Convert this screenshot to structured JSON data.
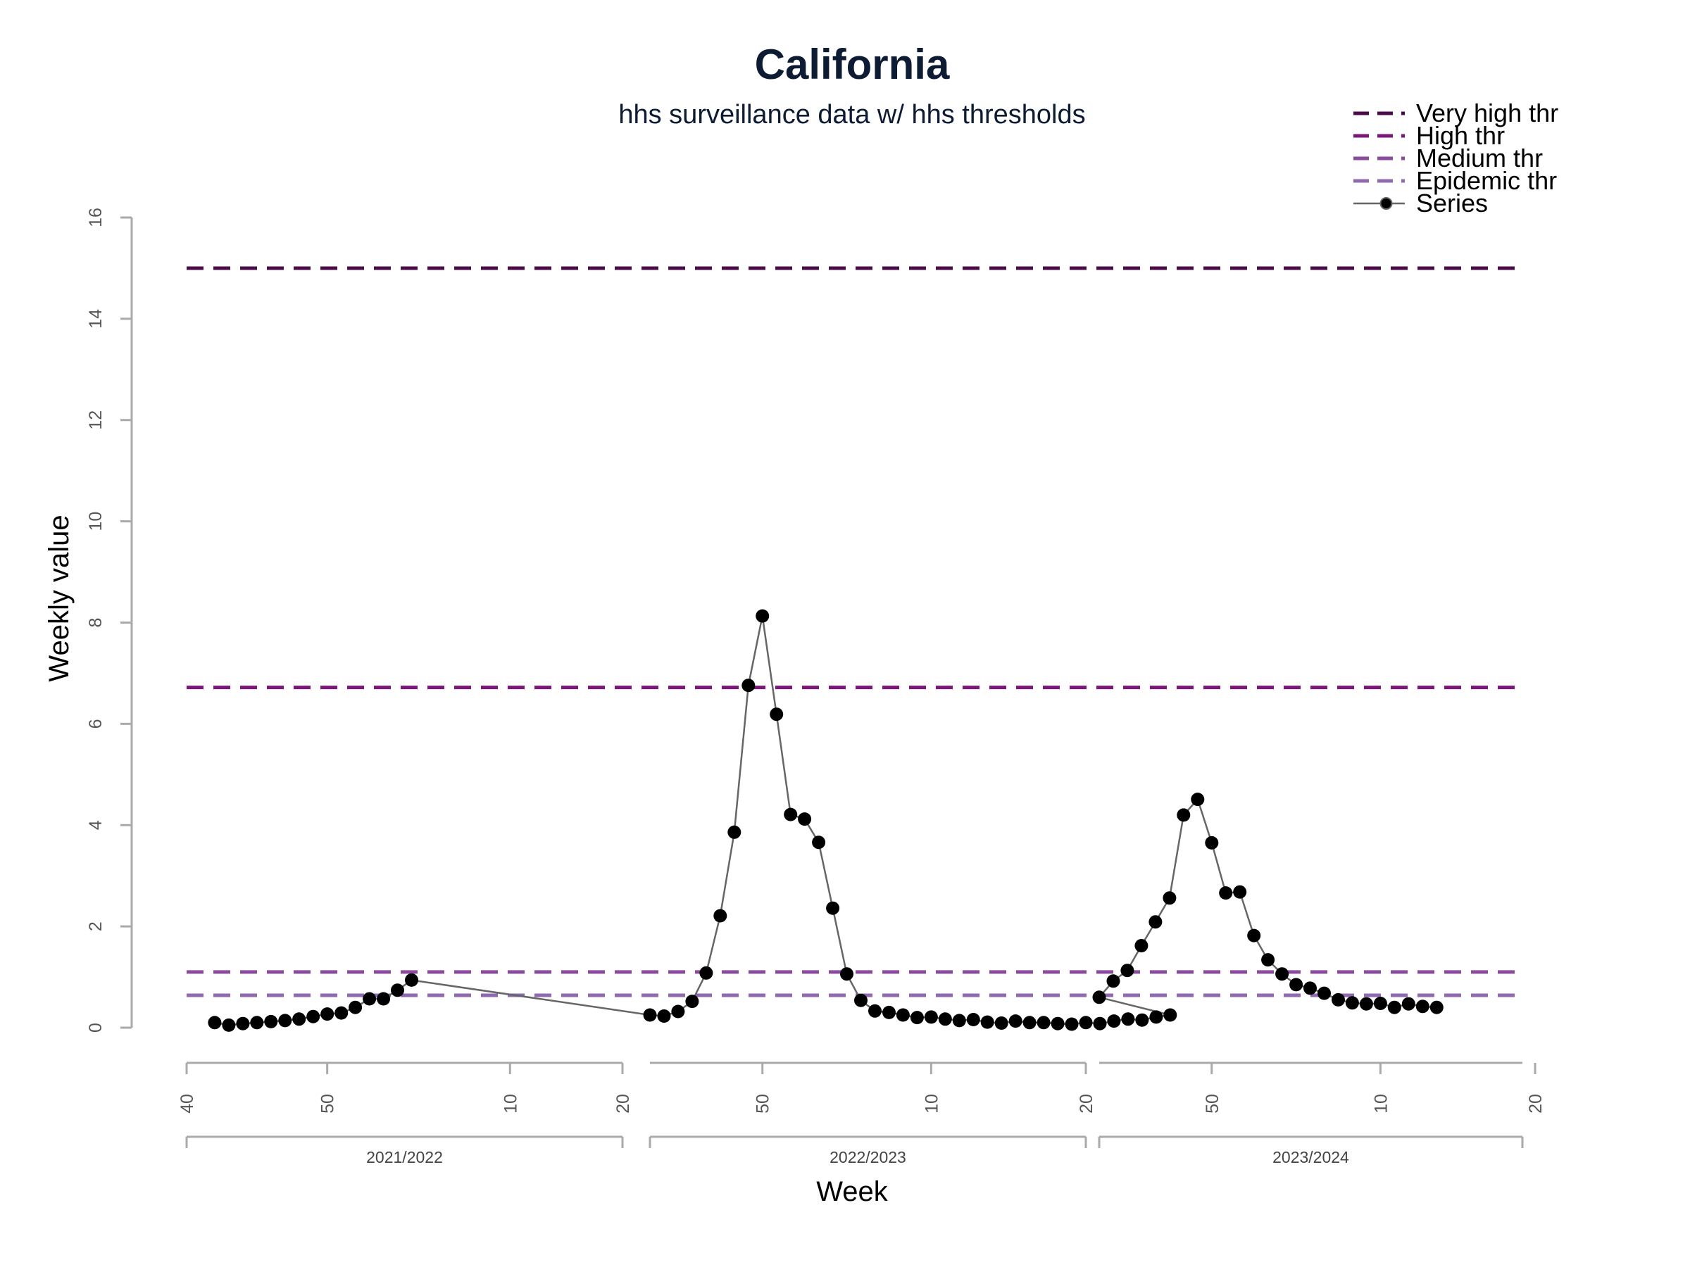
{
  "chart_data": {
    "type": "line",
    "title": "California",
    "subtitle": "hhs surveillance data w/ hhs thresholds",
    "xlabel": "Week",
    "ylabel": "Weekly value",
    "ylim": [
      0,
      16
    ],
    "yticks": [
      0,
      2,
      4,
      6,
      8,
      10,
      12,
      14,
      16
    ],
    "grid": false,
    "legend_position": "top-right",
    "x_axis": {
      "seasons": [
        {
          "label": "2021/2022",
          "start_week": 40,
          "end_week": 20,
          "tick_labels": [
            "40",
            "50",
            "10",
            "20"
          ]
        },
        {
          "label": "2022/2023",
          "start_week": 21,
          "end_week": 20,
          "tick_labels": [
            "50",
            "10",
            "20"
          ]
        },
        {
          "label": "2023/2024",
          "start_week": 21,
          "end_week": 20,
          "tick_labels": [
            "50",
            "10",
            "20"
          ]
        }
      ]
    },
    "thresholds": [
      {
        "name": "Very high thr",
        "value": 15.0,
        "color": "#4b0b4b"
      },
      {
        "name": "High thr",
        "value": 6.72,
        "color": "#7a1779"
      },
      {
        "name": "Medium thr",
        "value": 1.1,
        "color": "#8a4a9e"
      },
      {
        "name": "Epidemic thr",
        "value": 0.64,
        "color": "#8f69b0"
      }
    ],
    "series": [
      {
        "name": "Series",
        "color": "#000000",
        "line_color": "#666666",
        "start": {
          "season": 0,
          "week": 2
        },
        "values": [
          0.1,
          0.05,
          0.08,
          0.1,
          0.12,
          0.14,
          0.17,
          0.22,
          0.27,
          0.29,
          0.4,
          0.57,
          0.57,
          0.74,
          0.94,
          0.25,
          0.23,
          0.32,
          0.52,
          1.08,
          2.21,
          3.86,
          6.76,
          8.13,
          6.19,
          4.21,
          4.12,
          3.66,
          2.36,
          1.06,
          0.54,
          0.33,
          0.3,
          0.25,
          0.2,
          0.21,
          0.17,
          0.14,
          0.16,
          0.11,
          0.09,
          0.13,
          0.1,
          0.1,
          0.08,
          0.07,
          0.1,
          0.08,
          0.13,
          0.17,
          0.15,
          0.21,
          0.25,
          0.6,
          0.92,
          1.13,
          1.62,
          2.09,
          2.56,
          4.2,
          4.51,
          3.65,
          2.66,
          2.68,
          1.82,
          1.34,
          1.06,
          0.85,
          0.78,
          0.68,
          0.55,
          0.49,
          0.47,
          0.48,
          0.4,
          0.47,
          0.42,
          0.4
        ]
      }
    ]
  }
}
